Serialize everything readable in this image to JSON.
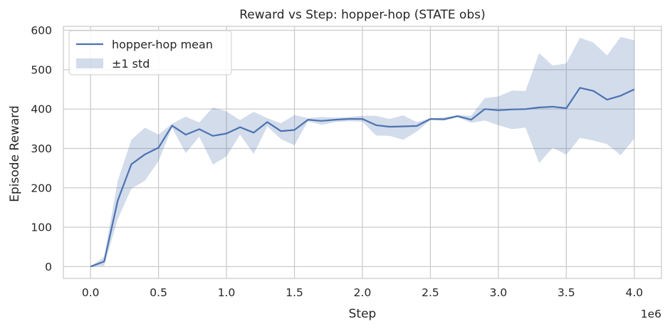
{
  "chart_data": {
    "type": "line",
    "title": "Reward vs Step: hopper-hop (STATE obs)",
    "xlabel": "Step",
    "ylabel": "Episode Reward",
    "x_offset_label": "1e6",
    "xlim": [
      -0.2,
      4.2
    ],
    "ylim": [
      -30,
      610
    ],
    "xticks": [
      0.0,
      0.5,
      1.0,
      1.5,
      2.0,
      2.5,
      3.0,
      3.5,
      4.0
    ],
    "xtick_labels": [
      "0.0",
      "0.5",
      "1.0",
      "1.5",
      "2.0",
      "2.5",
      "3.0",
      "3.5",
      "4.0"
    ],
    "yticks": [
      0,
      100,
      200,
      300,
      400,
      500,
      600
    ],
    "ytick_labels": [
      "0",
      "100",
      "200",
      "300",
      "400",
      "500",
      "600"
    ],
    "grid": true,
    "legend_position": "top-left",
    "colors": {
      "line": "#4c72b0",
      "band": "#4c72b0",
      "grid": "#cccccc"
    },
    "series": [
      {
        "name": "hopper-hop mean",
        "x": [
          0.0,
          0.1,
          0.2,
          0.3,
          0.4,
          0.5,
          0.6,
          0.7,
          0.8,
          0.9,
          1.0,
          1.1,
          1.2,
          1.3,
          1.4,
          1.5,
          1.6,
          1.7,
          1.8,
          1.9,
          2.0,
          2.1,
          2.2,
          2.3,
          2.4,
          2.5,
          2.6,
          2.7,
          2.8,
          2.9,
          3.0,
          3.1,
          3.2,
          3.3,
          3.4,
          3.5,
          3.6,
          3.7,
          3.8,
          3.9,
          4.0
        ],
        "values": [
          0,
          13,
          168,
          260,
          285,
          302,
          358,
          335,
          349,
          332,
          338,
          354,
          340,
          367,
          344,
          347,
          373,
          370,
          373,
          375,
          375,
          359,
          355,
          356,
          357,
          375,
          374,
          382,
          373,
          400,
          397,
          399,
          400,
          404,
          406,
          402,
          454,
          446,
          424,
          434,
          450
        ]
      },
      {
        "name": "±1 std",
        "type": "band",
        "x": [
          0.0,
          0.1,
          0.2,
          0.3,
          0.4,
          0.5,
          0.6,
          0.7,
          0.8,
          0.9,
          1.0,
          1.1,
          1.2,
          1.3,
          1.4,
          1.5,
          1.6,
          1.7,
          1.8,
          1.9,
          2.0,
          2.1,
          2.2,
          2.3,
          2.4,
          2.5,
          2.6,
          2.7,
          2.8,
          2.9,
          3.0,
          3.1,
          3.2,
          3.3,
          3.4,
          3.5,
          3.6,
          3.7,
          3.8,
          3.9,
          4.0
        ],
        "upper": [
          0,
          25,
          218,
          322,
          353,
          335,
          363,
          381,
          366,
          404,
          394,
          372,
          393,
          377,
          364,
          385,
          377,
          380,
          378,
          380,
          383,
          383,
          375,
          384,
          367,
          376,
          379,
          385,
          383,
          428,
          432,
          447,
          446,
          542,
          510,
          516,
          581,
          569,
          536,
          583,
          575
        ],
        "lower": [
          0,
          2,
          121,
          198,
          218,
          268,
          353,
          288,
          330,
          259,
          280,
          335,
          286,
          356,
          324,
          308,
          369,
          360,
          367,
          369,
          368,
          333,
          332,
          322,
          343,
          372,
          371,
          379,
          365,
          371,
          359,
          349,
          353,
          263,
          302,
          284,
          327,
          320,
          311,
          283,
          325
        ]
      }
    ]
  }
}
